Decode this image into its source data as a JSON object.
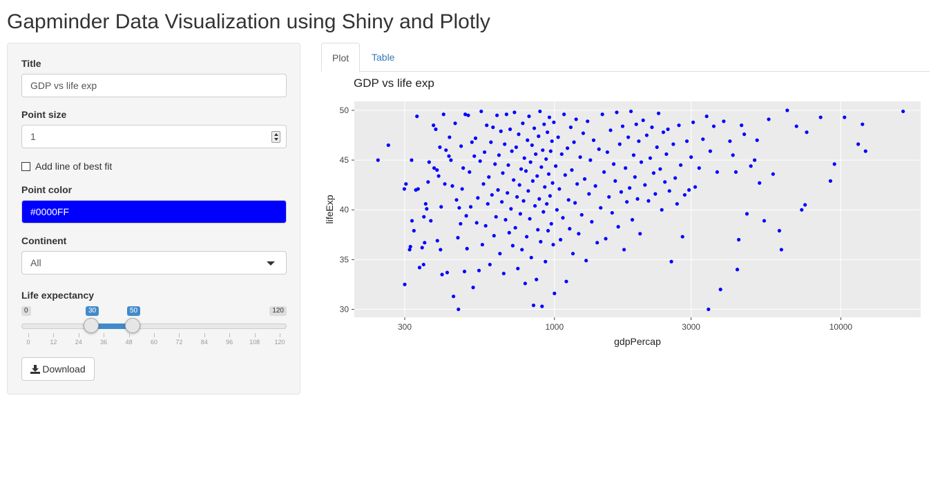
{
  "page": {
    "title": "Gapminder Data Visualization using Shiny and Plotly"
  },
  "sidebar": {
    "title_label": "Title",
    "title_value": "GDP vs life exp",
    "point_size_label": "Point size",
    "point_size_value": "1",
    "best_fit_label": "Add line of best fit",
    "best_fit_checked": false,
    "point_color_label": "Point color",
    "point_color_value": "#0000FF",
    "continent_label": "Continent",
    "continent_value": "All",
    "life_exp_label": "Life expectancy",
    "life_exp_min": "0",
    "life_exp_max": "120",
    "life_exp_low": "30",
    "life_exp_high": "50",
    "life_exp_ticks": [
      "0",
      "12",
      "24",
      "36",
      "48",
      "60",
      "72",
      "84",
      "96",
      "108",
      "120"
    ],
    "download_label": "Download"
  },
  "tabs": [
    {
      "label": "Plot",
      "active": true
    },
    {
      "label": "Table",
      "active": false
    }
  ],
  "colors": {
    "point": "#0000ff",
    "accent": "#428bca",
    "link": "#337ab7",
    "plot_bg": "#ebebeb"
  },
  "chart_data": {
    "type": "scatter",
    "title": "GDP vs life exp",
    "xlabel": "gdpPercap",
    "ylabel": "lifeExp",
    "x_scale": "log10",
    "xlim": [
      200,
      19000
    ],
    "ylim": [
      29.2,
      50.9
    ],
    "x_ticks": [
      300,
      1000,
      3000,
      10000
    ],
    "y_ticks": [
      30,
      35,
      40,
      45,
      50
    ],
    "grid": true,
    "point_color": "#0000ff",
    "points": [
      [
        242,
        45.0
      ],
      [
        263,
        46.5
      ],
      [
        299,
        42.1
      ],
      [
        300,
        32.5
      ],
      [
        303,
        42.6
      ],
      [
        312,
        36.0
      ],
      [
        314,
        36.3
      ],
      [
        317,
        45.0
      ],
      [
        318,
        38.9
      ],
      [
        323,
        37.9
      ],
      [
        328,
        42.0
      ],
      [
        331,
        49.4
      ],
      [
        334,
        42.1
      ],
      [
        338,
        34.2
      ],
      [
        345,
        36.2
      ],
      [
        349,
        34.5
      ],
      [
        350,
        39.3
      ],
      [
        352,
        36.7
      ],
      [
        355,
        40.6
      ],
      [
        358,
        40.1
      ],
      [
        362,
        42.8
      ],
      [
        365,
        44.8
      ],
      [
        370,
        38.9
      ],
      [
        378,
        48.5
      ],
      [
        380,
        44.2
      ],
      [
        385,
        48.1
      ],
      [
        389,
        44.0
      ],
      [
        390,
        36.9
      ],
      [
        394,
        43.4
      ],
      [
        398,
        46.3
      ],
      [
        400,
        36.0
      ],
      [
        402,
        40.3
      ],
      [
        405,
        33.5
      ],
      [
        410,
        49.6
      ],
      [
        414,
        42.6
      ],
      [
        418,
        46.0
      ],
      [
        422,
        33.7
      ],
      [
        428,
        45.4
      ],
      [
        430,
        47.3
      ],
      [
        435,
        45.0
      ],
      [
        440,
        42.4
      ],
      [
        444,
        31.3
      ],
      [
        450,
        48.7
      ],
      [
        455,
        41.0
      ],
      [
        460,
        37.2
      ],
      [
        462,
        30.0
      ],
      [
        465,
        40.2
      ],
      [
        470,
        38.6
      ],
      [
        472,
        46.4
      ],
      [
        476,
        42.1
      ],
      [
        480,
        44.2
      ],
      [
        485,
        33.8
      ],
      [
        488,
        49.6
      ],
      [
        492,
        39.4
      ],
      [
        495,
        36.1
      ],
      [
        500,
        49.5
      ],
      [
        505,
        43.8
      ],
      [
        510,
        40.3
      ],
      [
        515,
        46.8
      ],
      [
        520,
        32.2
      ],
      [
        525,
        45.4
      ],
      [
        530,
        47.2
      ],
      [
        535,
        38.7
      ],
      [
        540,
        41.2
      ],
      [
        545,
        33.9
      ],
      [
        550,
        44.9
      ],
      [
        555,
        49.9
      ],
      [
        560,
        36.5
      ],
      [
        565,
        42.6
      ],
      [
        570,
        45.8
      ],
      [
        575,
        38.4
      ],
      [
        580,
        48.5
      ],
      [
        585,
        40.6
      ],
      [
        590,
        43.3
      ],
      [
        595,
        34.5
      ],
      [
        600,
        46.8
      ],
      [
        605,
        41.5
      ],
      [
        610,
        48.3
      ],
      [
        615,
        37.4
      ],
      [
        620,
        44.6
      ],
      [
        625,
        39.3
      ],
      [
        630,
        49.5
      ],
      [
        635,
        42.0
      ],
      [
        640,
        45.5
      ],
      [
        645,
        35.6
      ],
      [
        650,
        47.9
      ],
      [
        655,
        40.8
      ],
      [
        660,
        43.7
      ],
      [
        665,
        33.6
      ],
      [
        670,
        46.6
      ],
      [
        675,
        39.0
      ],
      [
        680,
        49.6
      ],
      [
        685,
        41.7
      ],
      [
        690,
        44.5
      ],
      [
        695,
        37.7
      ],
      [
        700,
        48.1
      ],
      [
        705,
        40.1
      ],
      [
        710,
        45.9
      ],
      [
        715,
        36.4
      ],
      [
        720,
        43.0
      ],
      [
        725,
        49.8
      ],
      [
        730,
        38.2
      ],
      [
        735,
        46.3
      ],
      [
        740,
        41.3
      ],
      [
        745,
        34.1
      ],
      [
        750,
        47.6
      ],
      [
        755,
        42.5
      ],
      [
        760,
        39.6
      ],
      [
        765,
        44.1
      ],
      [
        770,
        36.0
      ],
      [
        775,
        48.7
      ],
      [
        780,
        40.9
      ],
      [
        785,
        45.2
      ],
      [
        790,
        32.6
      ],
      [
        795,
        43.9
      ],
      [
        800,
        37.3
      ],
      [
        805,
        47.0
      ],
      [
        810,
        41.9
      ],
      [
        815,
        49.4
      ],
      [
        820,
        39.1
      ],
      [
        825,
        44.8
      ],
      [
        830,
        35.2
      ],
      [
        835,
        46.5
      ],
      [
        840,
        42.9
      ],
      [
        845,
        30.4
      ],
      [
        850,
        48.2
      ],
      [
        855,
        40.4
      ],
      [
        860,
        45.6
      ],
      [
        865,
        33.0
      ],
      [
        870,
        43.4
      ],
      [
        875,
        38.0
      ],
      [
        880,
        47.4
      ],
      [
        885,
        41.1
      ],
      [
        890,
        49.9
      ],
      [
        895,
        36.8
      ],
      [
        900,
        44.3
      ],
      [
        905,
        30.3
      ],
      [
        910,
        46.0
      ],
      [
        915,
        39.8
      ],
      [
        920,
        48.6
      ],
      [
        925,
        42.3
      ],
      [
        930,
        34.8
      ],
      [
        935,
        45.1
      ],
      [
        940,
        40.6
      ],
      [
        945,
        47.8
      ],
      [
        950,
        37.9
      ],
      [
        955,
        43.6
      ],
      [
        960,
        49.3
      ],
      [
        965,
        41.4
      ],
      [
        970,
        45.9
      ],
      [
        975,
        38.6
      ],
      [
        980,
        46.9
      ],
      [
        985,
        42.7
      ],
      [
        990,
        36.5
      ],
      [
        995,
        48.8
      ],
      [
        1000,
        31.6
      ],
      [
        1010,
        44.4
      ],
      [
        1020,
        40.0
      ],
      [
        1030,
        47.3
      ],
      [
        1040,
        42.1
      ],
      [
        1050,
        37.0
      ],
      [
        1060,
        45.6
      ],
      [
        1070,
        39.2
      ],
      [
        1080,
        49.6
      ],
      [
        1090,
        43.5
      ],
      [
        1100,
        32.8
      ],
      [
        1110,
        46.2
      ],
      [
        1120,
        41.0
      ],
      [
        1130,
        38.1
      ],
      [
        1140,
        48.3
      ],
      [
        1150,
        44.0
      ],
      [
        1160,
        35.6
      ],
      [
        1170,
        46.8
      ],
      [
        1180,
        40.7
      ],
      [
        1190,
        49.1
      ],
      [
        1200,
        42.6
      ],
      [
        1215,
        37.6
      ],
      [
        1230,
        45.3
      ],
      [
        1245,
        39.5
      ],
      [
        1260,
        47.7
      ],
      [
        1275,
        43.1
      ],
      [
        1290,
        34.9
      ],
      [
        1305,
        48.9
      ],
      [
        1320,
        41.6
      ],
      [
        1335,
        45.0
      ],
      [
        1350,
        38.8
      ],
      [
        1370,
        47.0
      ],
      [
        1390,
        42.4
      ],
      [
        1410,
        36.7
      ],
      [
        1430,
        46.1
      ],
      [
        1450,
        40.2
      ],
      [
        1470,
        49.6
      ],
      [
        1490,
        43.8
      ],
      [
        1510,
        37.1
      ],
      [
        1530,
        45.8
      ],
      [
        1550,
        41.3
      ],
      [
        1570,
        48.0
      ],
      [
        1590,
        39.7
      ],
      [
        1610,
        44.6
      ],
      [
        1630,
        42.9
      ],
      [
        1650,
        49.8
      ],
      [
        1670,
        38.3
      ],
      [
        1690,
        46.6
      ],
      [
        1710,
        41.8
      ],
      [
        1730,
        48.4
      ],
      [
        1750,
        36.0
      ],
      [
        1770,
        44.2
      ],
      [
        1790,
        40.8
      ],
      [
        1810,
        47.3
      ],
      [
        1830,
        42.2
      ],
      [
        1850,
        49.9
      ],
      [
        1870,
        39.0
      ],
      [
        1890,
        45.5
      ],
      [
        1910,
        43.3
      ],
      [
        1930,
        48.6
      ],
      [
        1950,
        41.1
      ],
      [
        1970,
        46.9
      ],
      [
        1990,
        37.6
      ],
      [
        2010,
        44.8
      ],
      [
        2040,
        49.0
      ],
      [
        2070,
        42.5
      ],
      [
        2100,
        47.5
      ],
      [
        2130,
        40.9
      ],
      [
        2160,
        45.2
      ],
      [
        2190,
        48.3
      ],
      [
        2220,
        43.7
      ],
      [
        2250,
        41.6
      ],
      [
        2280,
        46.3
      ],
      [
        2310,
        49.7
      ],
      [
        2340,
        44.1
      ],
      [
        2370,
        40.0
      ],
      [
        2400,
        47.8
      ],
      [
        2430,
        42.8
      ],
      [
        2460,
        45.6
      ],
      [
        2490,
        48.1
      ],
      [
        2520,
        41.9
      ],
      [
        2560,
        34.8
      ],
      [
        2600,
        46.6
      ],
      [
        2640,
        43.2
      ],
      [
        2680,
        40.6
      ],
      [
        2720,
        48.5
      ],
      [
        2760,
        44.5
      ],
      [
        2800,
        37.3
      ],
      [
        2850,
        41.5
      ],
      [
        2900,
        46.9
      ],
      [
        2950,
        42.0
      ],
      [
        3000,
        45.3
      ],
      [
        3050,
        48.8
      ],
      [
        3100,
        42.3
      ],
      [
        3200,
        44.2
      ],
      [
        3300,
        47.1
      ],
      [
        3400,
        49.4
      ],
      [
        3450,
        30.0
      ],
      [
        3500,
        45.9
      ],
      [
        3600,
        48.4
      ],
      [
        3700,
        43.8
      ],
      [
        3800,
        32.0
      ],
      [
        3900,
        48.9
      ],
      [
        4100,
        46.9
      ],
      [
        4200,
        45.5
      ],
      [
        4300,
        43.8
      ],
      [
        4350,
        34.0
      ],
      [
        4400,
        37.0
      ],
      [
        4500,
        48.5
      ],
      [
        4600,
        47.6
      ],
      [
        4700,
        39.6
      ],
      [
        4850,
        44.4
      ],
      [
        5000,
        45.0
      ],
      [
        5100,
        47.0
      ],
      [
        5200,
        42.7
      ],
      [
        5400,
        38.9
      ],
      [
        5600,
        49.1
      ],
      [
        5800,
        43.6
      ],
      [
        6100,
        37.9
      ],
      [
        6200,
        36.0
      ],
      [
        6500,
        50.0
      ],
      [
        7000,
        48.4
      ],
      [
        7300,
        40.0
      ],
      [
        7500,
        40.5
      ],
      [
        7600,
        47.8
      ],
      [
        8500,
        49.3
      ],
      [
        9200,
        42.9
      ],
      [
        9500,
        44.6
      ],
      [
        10300,
        49.3
      ],
      [
        11500,
        46.6
      ],
      [
        11900,
        48.6
      ],
      [
        12200,
        45.9
      ],
      [
        16500,
        49.9
      ]
    ]
  }
}
